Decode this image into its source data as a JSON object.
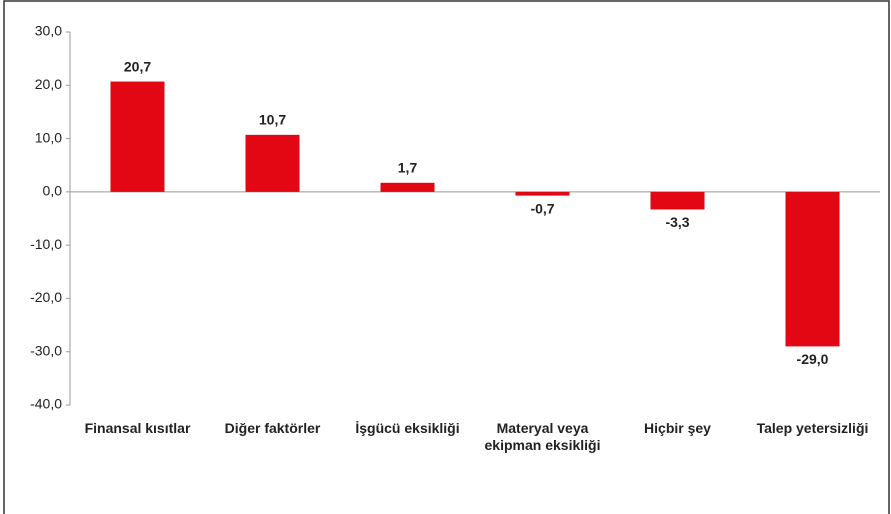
{
  "chart_data": {
    "type": "bar",
    "categories": [
      "Finansal kısıtlar",
      "Diğer faktörler",
      "İşgücü eksikliği",
      "Materyal veya ekipman eksikliği",
      "Hiçbir şey",
      "Talep yetersizliği"
    ],
    "values": [
      20.7,
      10.7,
      1.7,
      -0.7,
      -3.3,
      -29.0
    ],
    "value_labels": [
      "20,7",
      "10,7",
      "1,7",
      "-0,7",
      "-3,3",
      "-29,0"
    ],
    "color": "#e30613",
    "ylim": [
      -40,
      30
    ],
    "yticks": [
      {
        "value": 30,
        "label": "30,0"
      },
      {
        "value": 20,
        "label": "20,0"
      },
      {
        "value": 10,
        "label": "10,0"
      },
      {
        "value": 0,
        "label": "0,0"
      },
      {
        "value": -10,
        "label": "-10,0"
      },
      {
        "value": -20,
        "label": "-20,0"
      },
      {
        "value": -30,
        "label": "-30,0"
      },
      {
        "value": -40,
        "label": "-40,0"
      }
    ],
    "grid": false
  }
}
